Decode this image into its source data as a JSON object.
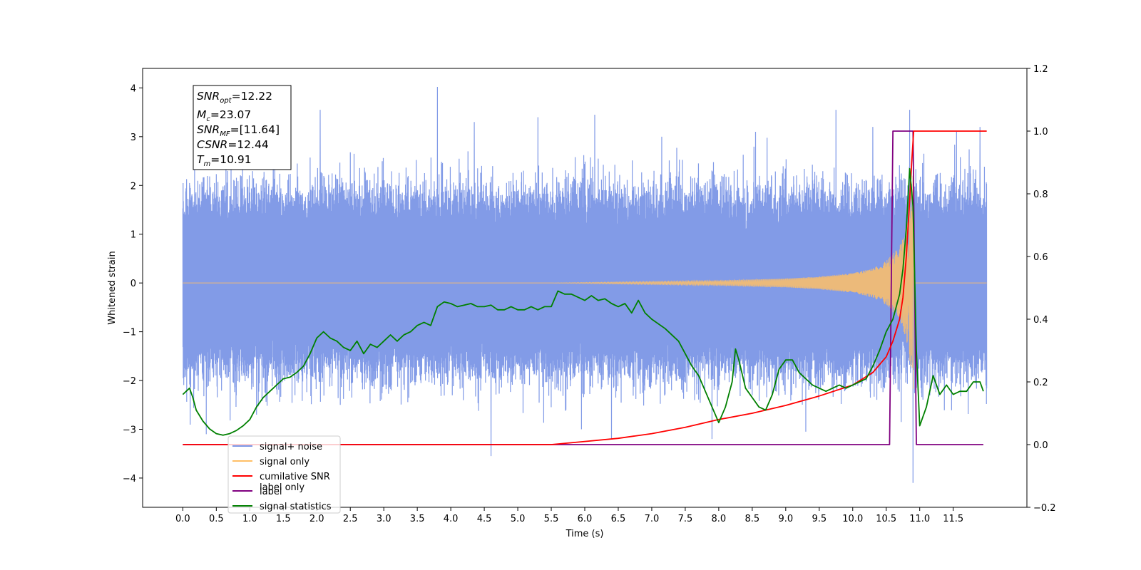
{
  "chart_data": {
    "type": "line",
    "xlabel": "Time (s)",
    "ylabel": "Whitened strain",
    "xlim": [
      -0.6,
      12.6
    ],
    "ylim": [
      -4.6,
      4.4
    ],
    "y2lim": [
      -0.2,
      1.2
    ],
    "x_ticks": [
      "0.0",
      "0.5",
      "1.0",
      "1.5",
      "2.0",
      "2.5",
      "3.0",
      "3.5",
      "4.0",
      "4.5",
      "5.0",
      "5.5",
      "6.0",
      "6.5",
      "7.0",
      "7.5",
      "8.0",
      "8.5",
      "9.0",
      "9.5",
      "10.0",
      "10.5",
      "11.0",
      "11.5"
    ],
    "y_ticks": [
      "4",
      "3",
      "2",
      "1",
      "0",
      "−1",
      "−2",
      "−3",
      "−4"
    ],
    "y2_ticks": [
      "1.2",
      "1.0",
      "0.8",
      "0.6",
      "0.4",
      "0.2",
      "0.0",
      "−0.2"
    ],
    "annotation": {
      "snr_opt": {
        "main": "SNR",
        "sub": "opt",
        "value": "=12.22"
      },
      "mc": {
        "main": "M",
        "sub": "c",
        "value": "=23.07"
      },
      "snr_mf": {
        "main": "SNR",
        "sub": "MF",
        "value": "=[11.64]"
      },
      "csnr": {
        "main": "CSNR",
        "value": "=12.44"
      },
      "tm": {
        "main": "T",
        "sub": "m",
        "value": "=10.91"
      }
    },
    "legend": {
      "placement": "lower-left",
      "entries": [
        {
          "label": "signal+ noise",
          "color": "#7b96e6"
        },
        {
          "label": "signal only",
          "color": "#ffbf66"
        },
        {
          "label": "cumilative SNR",
          "color": "#ff0000"
        },
        {
          "label": "label",
          "color": "#800080"
        },
        {
          "label": "signal statistics",
          "color": "#008000"
        }
      ],
      "hidden_text": "label only"
    },
    "series": [
      {
        "name": "signal+ noise",
        "axis": "left",
        "color": "#7b96e6",
        "t_range": [
          0.0,
          12.0
        ],
        "envelope": {
          "upper_typical": 1.4,
          "lower_typical": -1.5
        },
        "peaks": [
          {
            "x": 0.1,
            "y": 2.05
          },
          {
            "x": 0.35,
            "y": -3.1
          },
          {
            "x": 1.1,
            "y": -2.7
          },
          {
            "x": 1.35,
            "y": 2.6
          },
          {
            "x": 2.05,
            "y": 3.55
          },
          {
            "x": 2.35,
            "y": -2.5
          },
          {
            "x": 3.8,
            "y": 4.02
          },
          {
            "x": 4.35,
            "y": 3.3
          },
          {
            "x": 4.6,
            "y": -3.55
          },
          {
            "x": 5.3,
            "y": 3.4
          },
          {
            "x": 5.95,
            "y": -3.0
          },
          {
            "x": 6.15,
            "y": 3.45
          },
          {
            "x": 6.4,
            "y": -3.2
          },
          {
            "x": 7.15,
            "y": 3.0
          },
          {
            "x": 7.9,
            "y": -3.2
          },
          {
            "x": 8.55,
            "y": 3.1
          },
          {
            "x": 9.3,
            "y": -3.05
          },
          {
            "x": 9.75,
            "y": 3.55
          },
          {
            "x": 10.3,
            "y": 3.2
          },
          {
            "x": 10.85,
            "y": 3.55
          },
          {
            "x": 10.9,
            "y": -4.1
          },
          {
            "x": 11.55,
            "y": 3.1
          },
          {
            "x": 11.9,
            "y": 3.2
          }
        ]
      },
      {
        "name": "signal only",
        "axis": "left",
        "color": "#ffbf66",
        "t_range": [
          0.0,
          12.0
        ],
        "chirp_end": 10.91,
        "x": [
          0.0,
          5.5,
          7.0,
          8.0,
          9.0,
          9.5,
          10.0,
          10.3,
          10.5,
          10.7,
          10.8,
          10.88,
          10.91,
          12.0
        ],
        "amplitude": [
          0.0,
          0.0,
          0.03,
          0.05,
          0.09,
          0.13,
          0.2,
          0.3,
          0.45,
          0.75,
          1.15,
          1.9,
          2.4,
          0.0
        ]
      },
      {
        "name": "cumilative SNR",
        "axis": "right",
        "color": "#ff0000",
        "x": [
          0.0,
          5.0,
          5.5,
          6.0,
          6.5,
          7.0,
          7.5,
          8.0,
          8.5,
          9.0,
          9.5,
          10.0,
          10.3,
          10.5,
          10.6,
          10.7,
          10.75,
          10.8,
          10.85,
          10.88,
          10.91,
          11.0,
          12.0
        ],
        "y": [
          0.0,
          0.0,
          0.0,
          0.01,
          0.02,
          0.035,
          0.055,
          0.08,
          0.1,
          0.125,
          0.155,
          0.19,
          0.23,
          0.28,
          0.33,
          0.4,
          0.47,
          0.6,
          0.78,
          0.9,
          1.0,
          1.0,
          1.0
        ]
      },
      {
        "name": "label",
        "axis": "right",
        "color": "#800080",
        "x": [
          0.0,
          10.55,
          10.6,
          10.9,
          10.95,
          11.95
        ],
        "y": [
          0.0,
          0.0,
          1.0,
          1.0,
          0.0,
          0.0
        ]
      },
      {
        "name": "signal statistics",
        "axis": "right",
        "color": "#008000",
        "x": [
          0.0,
          0.05,
          0.1,
          0.15,
          0.2,
          0.3,
          0.4,
          0.5,
          0.6,
          0.7,
          0.8,
          0.9,
          1.0,
          1.1,
          1.2,
          1.3,
          1.4,
          1.5,
          1.6,
          1.7,
          1.8,
          1.9,
          2.0,
          2.1,
          2.2,
          2.3,
          2.4,
          2.5,
          2.6,
          2.7,
          2.8,
          2.9,
          3.0,
          3.1,
          3.2,
          3.3,
          3.4,
          3.5,
          3.6,
          3.7,
          3.8,
          3.9,
          4.0,
          4.1,
          4.2,
          4.3,
          4.4,
          4.5,
          4.6,
          4.7,
          4.8,
          4.9,
          5.0,
          5.1,
          5.2,
          5.3,
          5.4,
          5.5,
          5.6,
          5.7,
          5.8,
          5.9,
          6.0,
          6.1,
          6.2,
          6.3,
          6.4,
          6.5,
          6.6,
          6.7,
          6.8,
          6.9,
          7.0,
          7.2,
          7.4,
          7.5,
          7.6,
          7.7,
          7.8,
          7.9,
          8.0,
          8.1,
          8.2,
          8.25,
          8.3,
          8.4,
          8.5,
          8.6,
          8.7,
          8.8,
          8.9,
          9.0,
          9.1,
          9.2,
          9.3,
          9.4,
          9.5,
          9.6,
          9.7,
          9.8,
          9.9,
          10.0,
          10.1,
          10.2,
          10.3,
          10.4,
          10.5,
          10.6,
          10.7,
          10.75,
          10.8,
          10.85,
          10.9,
          10.95,
          11.0,
          11.1,
          11.2,
          11.3,
          11.4,
          11.5,
          11.6,
          11.7,
          11.8,
          11.9,
          11.95
        ],
        "y": [
          0.16,
          0.17,
          0.18,
          0.15,
          0.11,
          0.075,
          0.05,
          0.035,
          0.03,
          0.035,
          0.045,
          0.06,
          0.08,
          0.12,
          0.15,
          0.17,
          0.19,
          0.21,
          0.215,
          0.23,
          0.25,
          0.29,
          0.34,
          0.36,
          0.34,
          0.33,
          0.31,
          0.3,
          0.33,
          0.29,
          0.32,
          0.31,
          0.33,
          0.35,
          0.33,
          0.35,
          0.36,
          0.38,
          0.39,
          0.38,
          0.44,
          0.455,
          0.45,
          0.44,
          0.445,
          0.45,
          0.44,
          0.44,
          0.445,
          0.43,
          0.43,
          0.44,
          0.43,
          0.43,
          0.44,
          0.43,
          0.44,
          0.44,
          0.49,
          0.48,
          0.48,
          0.47,
          0.46,
          0.475,
          0.46,
          0.465,
          0.45,
          0.44,
          0.45,
          0.42,
          0.46,
          0.42,
          0.4,
          0.37,
          0.33,
          0.29,
          0.25,
          0.22,
          0.17,
          0.12,
          0.07,
          0.12,
          0.2,
          0.305,
          0.27,
          0.18,
          0.15,
          0.12,
          0.11,
          0.16,
          0.24,
          0.27,
          0.27,
          0.23,
          0.21,
          0.19,
          0.18,
          0.17,
          0.18,
          0.19,
          0.18,
          0.19,
          0.2,
          0.21,
          0.25,
          0.3,
          0.36,
          0.4,
          0.48,
          0.56,
          0.69,
          0.88,
          0.76,
          0.3,
          0.06,
          0.12,
          0.22,
          0.16,
          0.19,
          0.16,
          0.17,
          0.17,
          0.2,
          0.2,
          0.17
        ]
      }
    ]
  }
}
